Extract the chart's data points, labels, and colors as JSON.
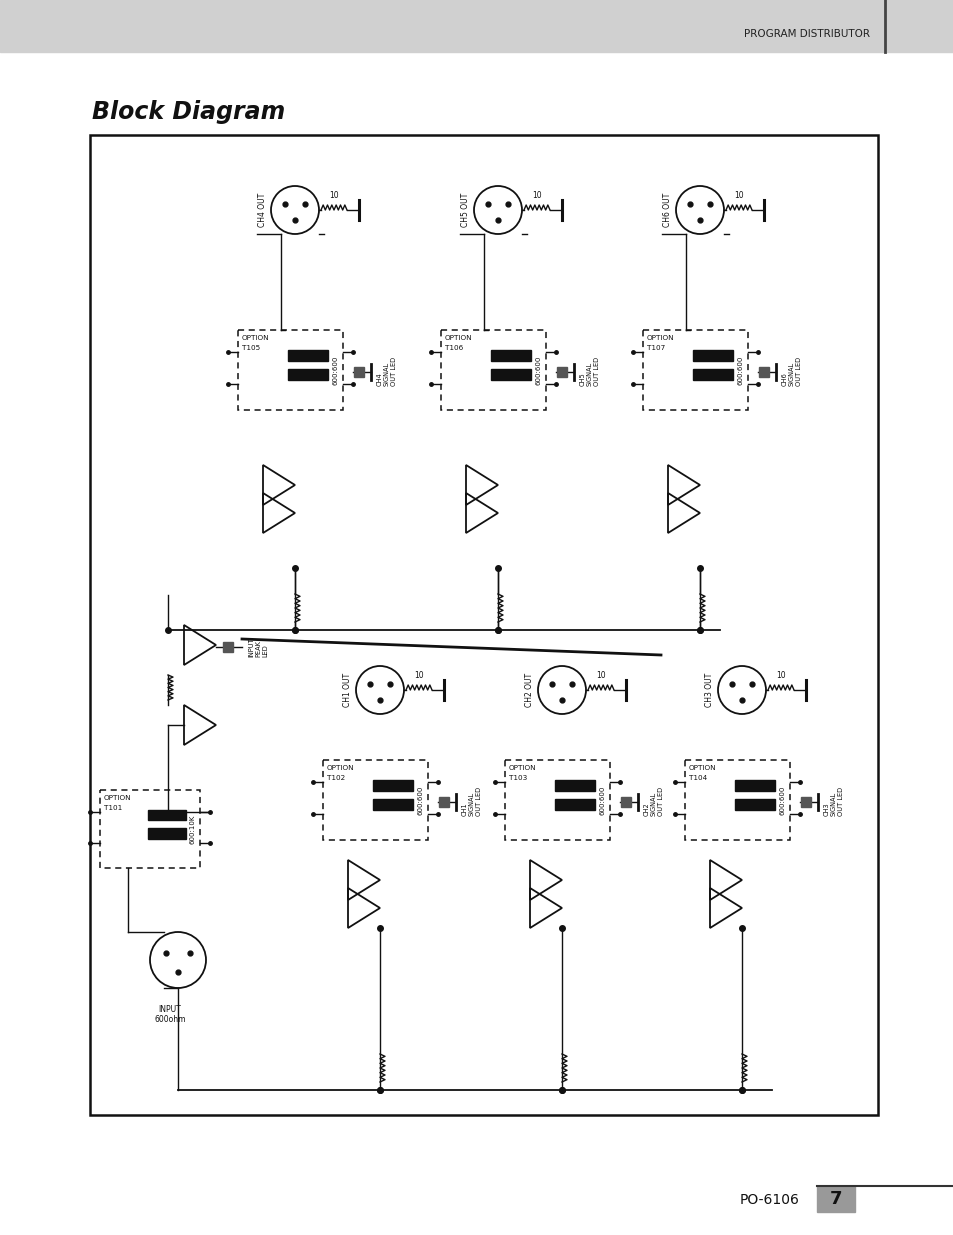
{
  "title": "Block Diagram",
  "header_text": "PROGRAM DISTRIBUTOR",
  "page_label": "PO-6106",
  "page_number": "7",
  "bg_color": "#ffffff",
  "header_bg": "#cccccc",
  "channels_top": [
    "CH4 OUT",
    "CH5 OUT",
    "CH6 OUT"
  ],
  "channels_bottom": [
    "CH1 OUT",
    "CH2 OUT",
    "CH3 OUT"
  ],
  "tx_ids_top": [
    "T105",
    "T106",
    "T107"
  ],
  "tx_ids_bottom": [
    "T102",
    "T103",
    "T104"
  ],
  "tx_ratio_out": "600:600",
  "tx_ratio_in": "600:10K",
  "tx_id_in": "T101",
  "leds_top": [
    "CH4\nSIGNAL\nOUT LED",
    "CH5\nSIGNAL\nOUT LED",
    "CH6\nSIGNAL\nOUT LED"
  ],
  "leds_bottom": [
    "CH1\nSIGNAL\nOUT LED",
    "CH2\nSIGNAL\nOUT LED",
    "CH3\nSIGNAL\nOUT LED"
  ],
  "input_label": "INPUT\n600ohm",
  "input_peak_led": "INPUT\nPEAK\nLED",
  "resistor_label": "10"
}
